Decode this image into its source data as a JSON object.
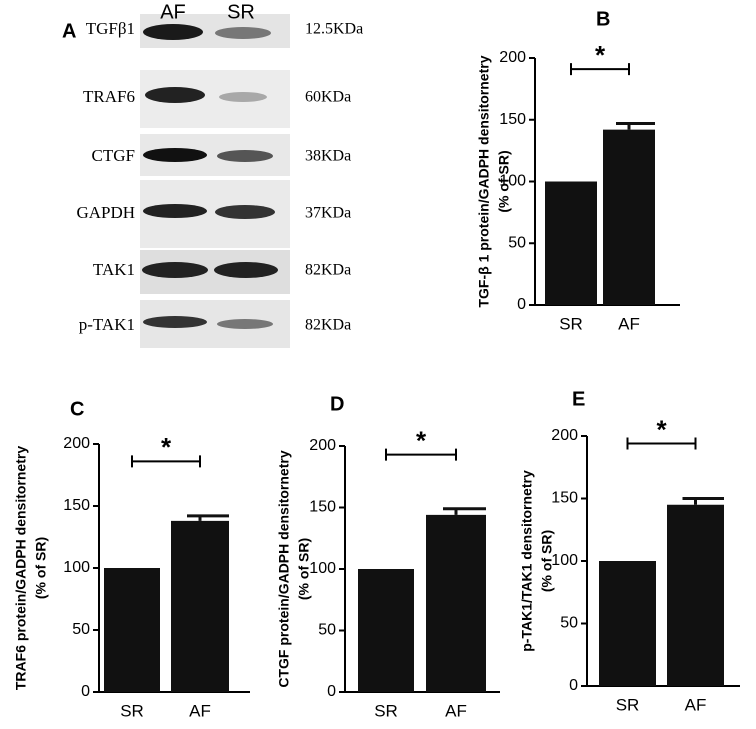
{
  "blot": {
    "panel_label": "A",
    "lanes": [
      "AF",
      "SR"
    ],
    "rows": [
      {
        "protein": "TGFβ1",
        "size": "12.5KDa"
      },
      {
        "protein": "TRAF6",
        "size": "60KDa"
      },
      {
        "protein": "CTGF",
        "size": "38KDa"
      },
      {
        "protein": "GAPDH",
        "size": "37KDa"
      },
      {
        "protein": "TAK1",
        "size": "82KDa"
      },
      {
        "protein": "p-TAK1",
        "size": "82KDa"
      }
    ]
  },
  "chart_data": [
    {
      "type": "bar",
      "panel_label": "B",
      "ylabel": [
        "TGF-β 1 protein/GADPH densitornetry",
        "(% of SR)"
      ],
      "categories": [
        "SR",
        "AF"
      ],
      "values": [
        100,
        142
      ],
      "errors": [
        null,
        5
      ],
      "color": "#111111",
      "ylim": [
        0,
        200
      ],
      "yticks": [
        0,
        50,
        100,
        150,
        200
      ],
      "annotation": "*"
    },
    {
      "type": "bar",
      "panel_label": "C",
      "ylabel": [
        "TRAF6 protein/GADPH densitornetry",
        "(% of SR)"
      ],
      "categories": [
        "SR",
        "AF"
      ],
      "values": [
        100,
        138
      ],
      "errors": [
        null,
        4
      ],
      "color": "#111111",
      "ylim": [
        0,
        200
      ],
      "yticks": [
        0,
        50,
        100,
        150,
        200
      ],
      "annotation": "*"
    },
    {
      "type": "bar",
      "panel_label": "D",
      "ylabel": [
        "CTGF protein/GADPH densitornetry",
        "(% of SR)"
      ],
      "categories": [
        "SR",
        "AF"
      ],
      "values": [
        100,
        144
      ],
      "errors": [
        null,
        5
      ],
      "color": "#111111",
      "ylim": [
        0,
        200
      ],
      "yticks": [
        0,
        50,
        100,
        150,
        200
      ],
      "annotation": "*"
    },
    {
      "type": "bar",
      "panel_label": "E",
      "ylabel": [
        "p-TAK1/TAK1 densitornetry",
        "(% of SR)"
      ],
      "categories": [
        "SR",
        "AF"
      ],
      "values": [
        100,
        145
      ],
      "errors": [
        null,
        5
      ],
      "color": "#111111",
      "ylim": [
        0,
        200
      ],
      "yticks": [
        0,
        50,
        100,
        150,
        200
      ],
      "annotation": "*"
    }
  ]
}
